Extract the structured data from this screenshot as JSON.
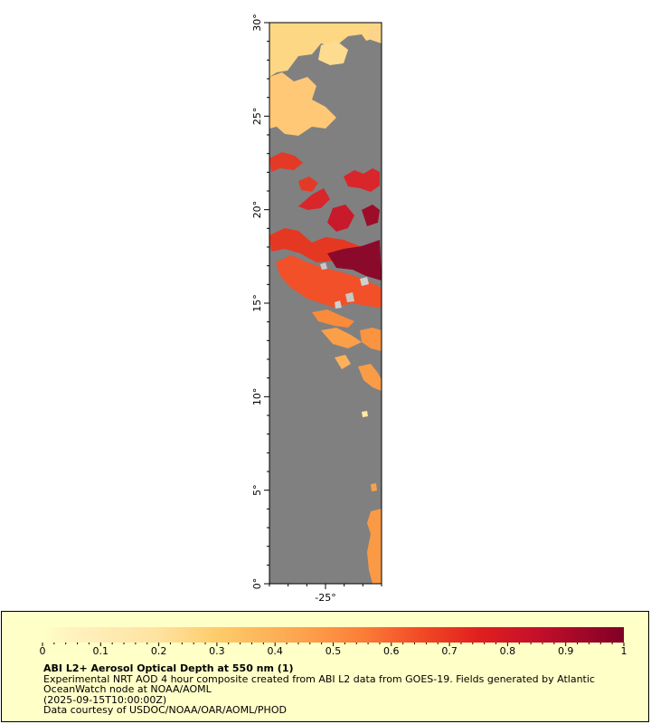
{
  "map": {
    "y_ticks": [
      {
        "value": 0,
        "label": "0°"
      },
      {
        "value": 5,
        "label": "5°"
      },
      {
        "value": 10,
        "label": "10°"
      },
      {
        "value": 15,
        "label": "15°"
      },
      {
        "value": 20,
        "label": "20°"
      },
      {
        "value": 25,
        "label": "25°"
      },
      {
        "value": 30,
        "label": "30°"
      }
    ],
    "x_ticks": [
      {
        "value": -25,
        "label": "-25°"
      }
    ],
    "lat_range": [
      0,
      30
    ],
    "lon_range": [
      -28,
      -22
    ],
    "background_color": "#808080"
  },
  "legend": {
    "colorbar_ticks": [
      "0",
      "0.1",
      "0.2",
      "0.3",
      "0.4",
      "0.5",
      "0.6",
      "0.7",
      "0.8",
      "0.9",
      "1"
    ],
    "colorbar_range": [
      0,
      1
    ],
    "title": "ABI L2+ Aerosol Optical Depth at 550 nm (1)",
    "line1": "Experimental NRT AOD 4 hour composite created from ABI L2 data from GOES-19. Fields generated by Atlantic",
    "line2": "OceanWatch node at NOAA/AOML",
    "line3": "(2025-09-15T10:00:00Z)",
    "line4": "Data courtesy of USDOC/NOAA/OAR/AOML/PHOD",
    "colors": {
      "low": "#fff5d9",
      "mid_low": "#fdc66a",
      "mid": "#fb8c3c",
      "high": "#e8251e",
      "max": "#800026"
    }
  }
}
